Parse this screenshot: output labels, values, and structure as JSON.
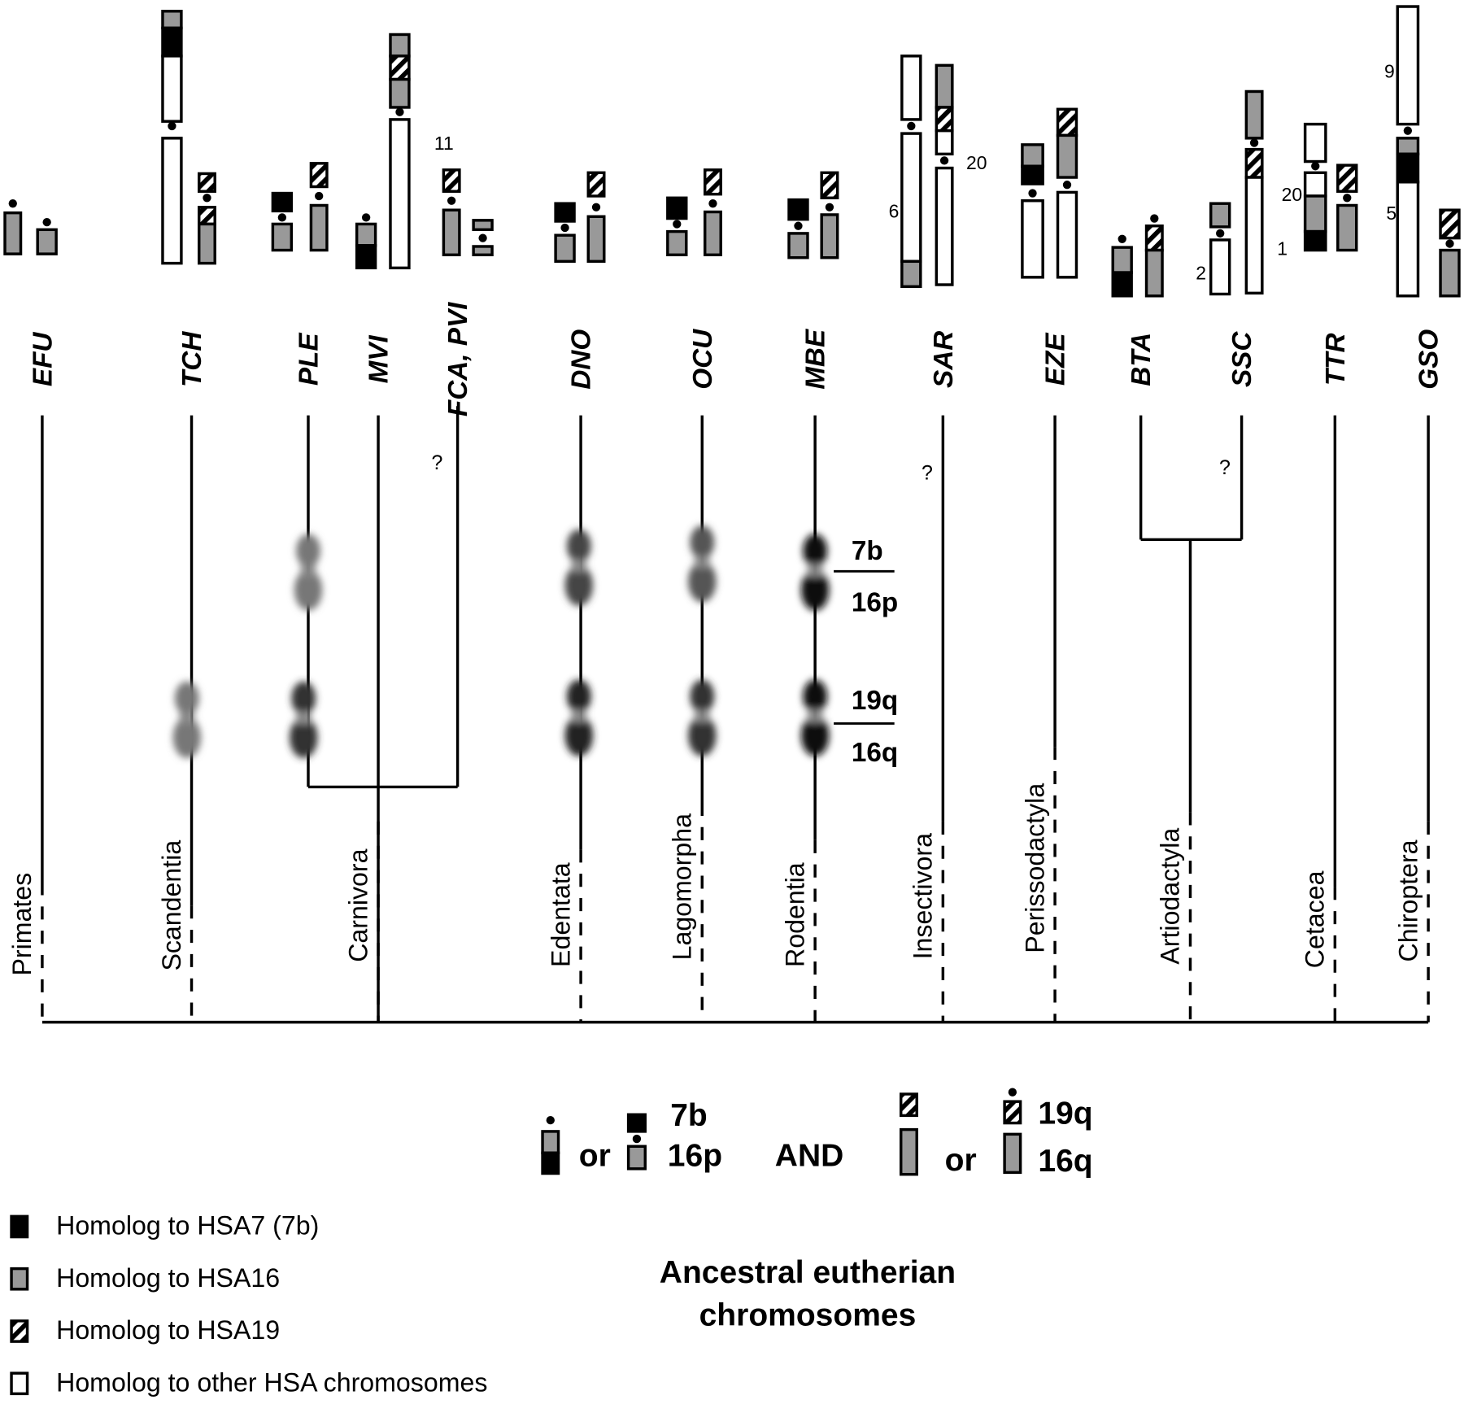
{
  "species": [
    "EFU",
    "TCH",
    "PLE",
    "MVI",
    "FCA, PVI",
    "DNO",
    "OCU",
    "MBE",
    "SAR",
    "EZE",
    "BTA",
    "SSC",
    "TTR",
    "GSO"
  ],
  "orders": [
    "Primates",
    "Scandentia",
    "Carnivora",
    "Edentata",
    "Lagomorpha",
    "Rodentia",
    "Insectivora",
    "Perissodactyla",
    "Artiodactyla",
    "Cetacea",
    "Chiroptera"
  ],
  "chromosome_numbers": [
    "11",
    "20",
    "6",
    "2",
    "1",
    "20",
    "9",
    "5"
  ],
  "question_marks": [
    "?",
    "?",
    "?"
  ],
  "band_labels": [
    "7b",
    "16p",
    "19q",
    "16q"
  ],
  "ancestral": {
    "labels": [
      "7b",
      "16p",
      "19q",
      "16q"
    ],
    "connectors": [
      "or",
      "AND",
      "or"
    ],
    "title": "Ancestral eutherian chromosomes"
  },
  "legend": [
    "Homolog to HSA7 (7b)",
    "Homolog to HSA16",
    "Homolog to HSA19",
    "Homolog to other HSA chromosomes"
  ]
}
